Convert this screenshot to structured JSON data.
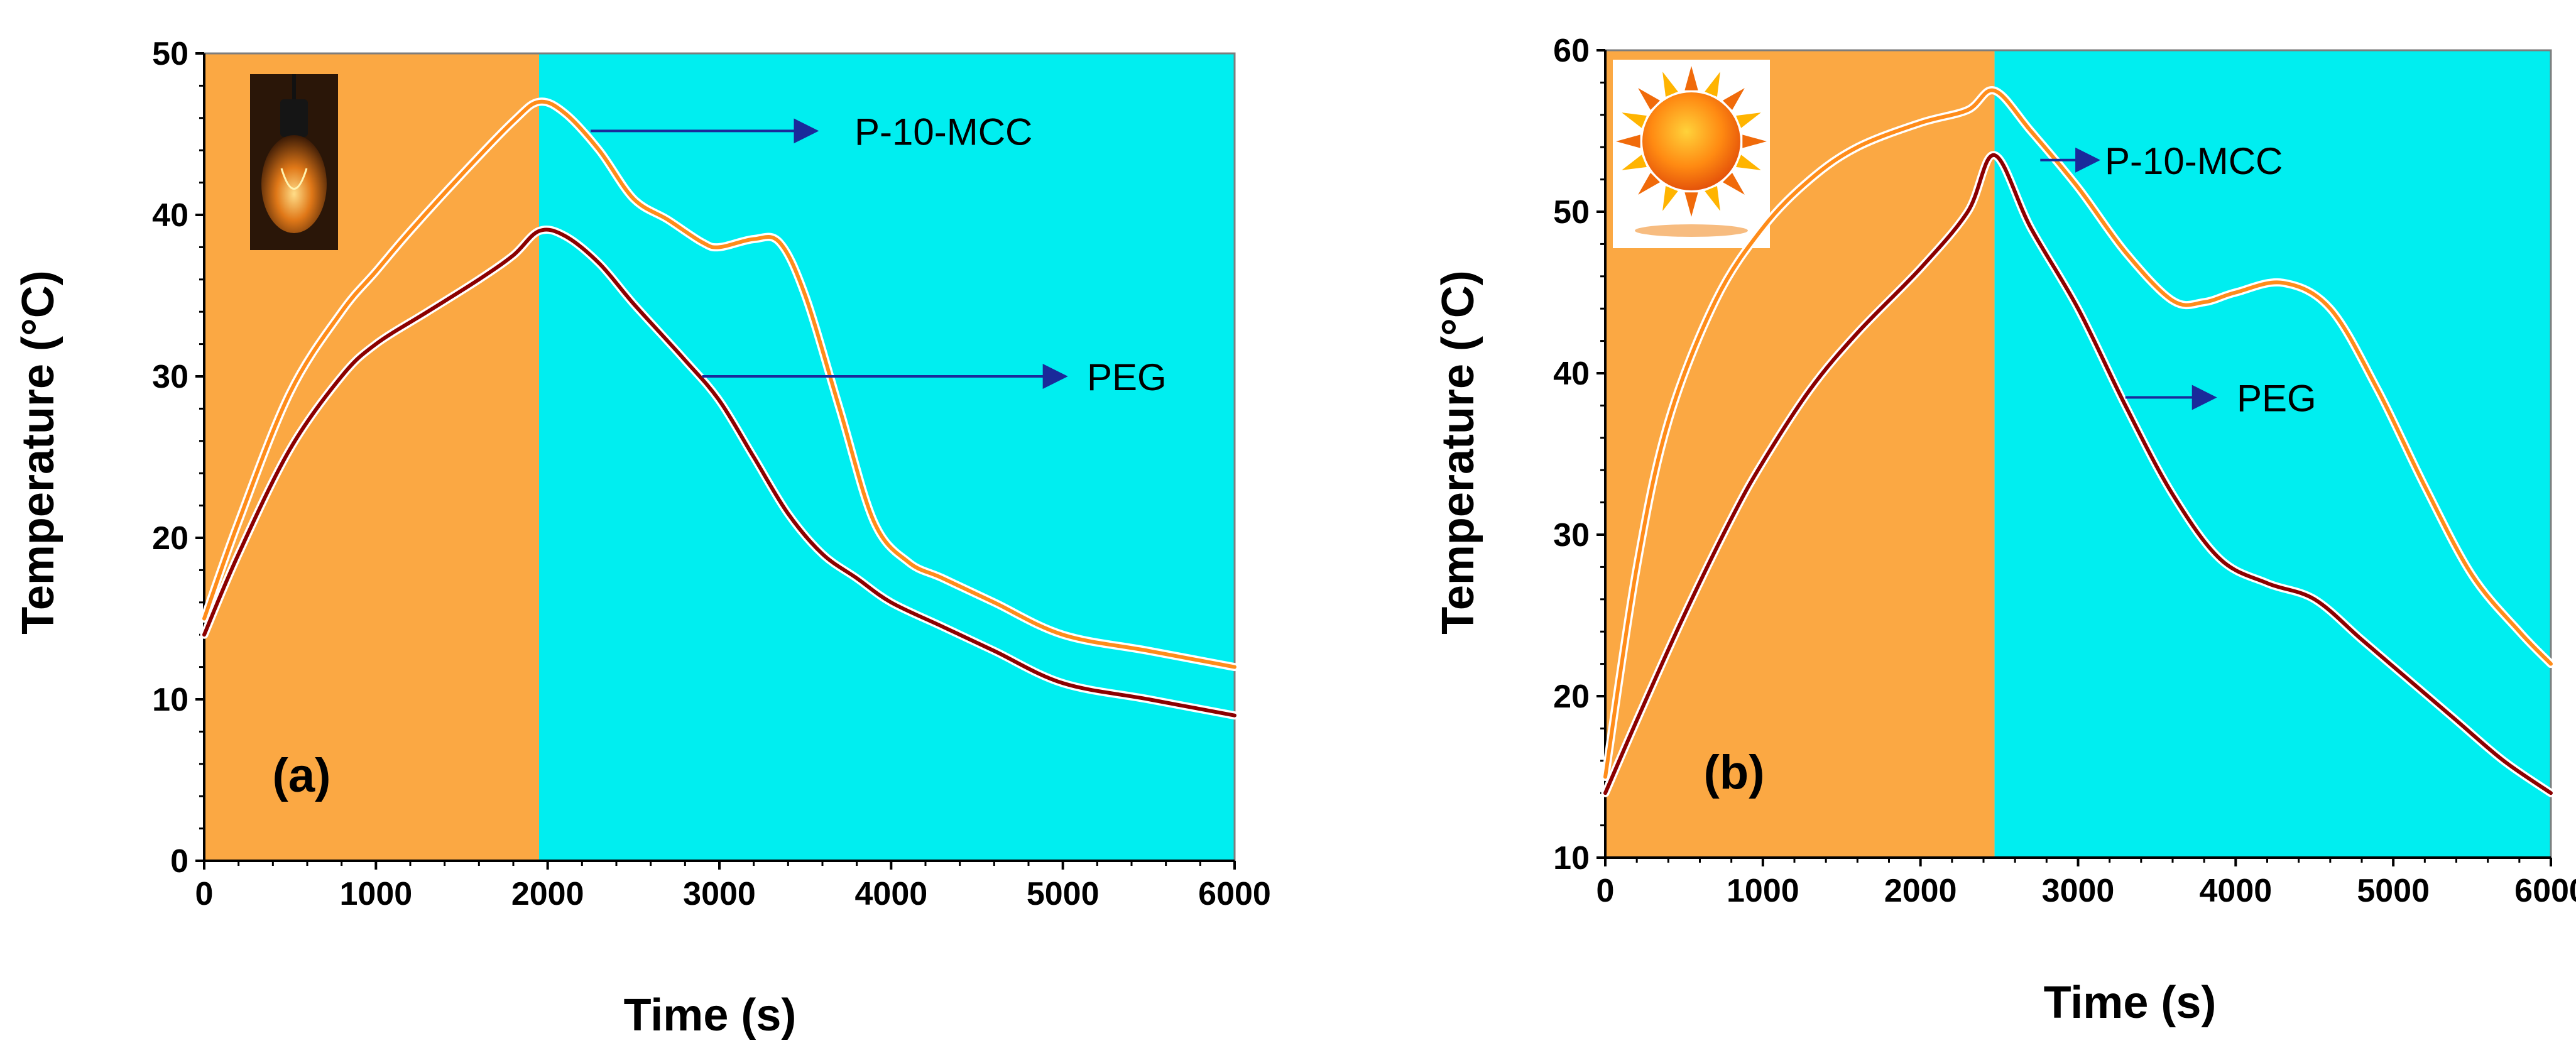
{
  "chart_data": [
    {
      "type": "line",
      "panel_label": "(a)",
      "icon": "light-bulb-icon",
      "xlabel": "Time (s)",
      "ylabel": "Temperature (°C)",
      "xlim": [
        0,
        6000
      ],
      "ylim": [
        0,
        50
      ],
      "xticks": [
        0,
        1000,
        2000,
        3000,
        4000,
        5000,
        6000
      ],
      "yticks": [
        0,
        10,
        20,
        30,
        40,
        50
      ],
      "phases": [
        {
          "name": "heating",
          "range": [
            0,
            1950
          ],
          "color": "#FBA843"
        },
        {
          "name": "cooling",
          "range": [
            1950,
            6000
          ],
          "color": "#00EEF0"
        }
      ],
      "series": [
        {
          "name": "P-10-MCC",
          "color": "#FF8C1A",
          "x": [
            0,
            200,
            500,
            800,
            1000,
            1200,
            1500,
            1800,
            1950,
            2100,
            2300,
            2500,
            2700,
            2900,
            3000,
            3200,
            3350,
            3500,
            3700,
            3900,
            4100,
            4300,
            4600,
            5000,
            5500,
            6000
          ],
          "y": [
            15,
            21,
            29,
            34,
            36.5,
            39,
            42.5,
            45.8,
            47,
            46.3,
            44,
            41,
            39.7,
            38.3,
            38,
            38.5,
            38.3,
            35,
            28,
            21,
            18.5,
            17.5,
            16,
            14,
            13,
            12
          ]
        },
        {
          "name": "PEG",
          "color": "#8B0000",
          "x": [
            0,
            200,
            500,
            800,
            1000,
            1300,
            1600,
            1800,
            1950,
            2100,
            2300,
            2500,
            2800,
            3000,
            3200,
            3400,
            3600,
            3800,
            4000,
            4300,
            4600,
            5000,
            5500,
            6000
          ],
          "y": [
            14,
            19,
            25.5,
            30,
            32,
            34,
            36,
            37.5,
            39,
            38.7,
            37,
            34.5,
            31,
            28.5,
            25,
            21.5,
            19,
            17.5,
            16,
            14.5,
            13,
            11,
            10,
            9
          ]
        }
      ],
      "annotations": [
        {
          "text": "P-10-MCC",
          "arrow_from": [
            2250,
            45.2
          ],
          "arrow_to": [
            3550,
            45.2
          ]
        },
        {
          "text": "PEG",
          "arrow_from": [
            2900,
            30
          ],
          "arrow_to": [
            5000,
            30
          ]
        }
      ]
    },
    {
      "type": "line",
      "panel_label": "(b)",
      "icon": "sun-icon",
      "xlabel": "Time (s)",
      "ylabel": "Temperature (°C)",
      "xlim": [
        0,
        6000
      ],
      "ylim": [
        10,
        60
      ],
      "xticks": [
        0,
        1000,
        2000,
        3000,
        4000,
        5000,
        6000
      ],
      "yticks": [
        10,
        20,
        30,
        40,
        50,
        60
      ],
      "phases": [
        {
          "name": "heating",
          "range": [
            0,
            2470
          ],
          "color": "#FBA843"
        },
        {
          "name": "cooling",
          "range": [
            2470,
            6000
          ],
          "color": "#00EEF0"
        }
      ],
      "series": [
        {
          "name": "P-10-MCC",
          "color": "#FF8C1A",
          "x": [
            0,
            200,
            400,
            700,
            1000,
            1300,
            1600,
            2000,
            2300,
            2470,
            2700,
            3000,
            3300,
            3600,
            3800,
            4000,
            4300,
            4600,
            4900,
            5200,
            5500,
            5800,
            6000
          ],
          "y": [
            15,
            28,
            37,
            44.5,
            49,
            52,
            54,
            55.5,
            56.3,
            57.5,
            55,
            51.5,
            47.5,
            44.5,
            44.4,
            45,
            45.6,
            44,
            39,
            33,
            27.5,
            24,
            22
          ]
        },
        {
          "name": "PEG",
          "color": "#8B0000",
          "x": [
            0,
            200,
            500,
            800,
            1000,
            1300,
            1600,
            2000,
            2300,
            2470,
            2700,
            3000,
            3300,
            3600,
            3900,
            4200,
            4500,
            4800,
            5100,
            5400,
            5700,
            6000
          ],
          "y": [
            14,
            18.5,
            25,
            31,
            34.5,
            39,
            42.5,
            46.5,
            50,
            53.5,
            49,
            44,
            38,
            32.5,
            28.5,
            27,
            26,
            23.5,
            21,
            18.5,
            16,
            14
          ]
        }
      ],
      "annotations": [
        {
          "text": "P-10-MCC",
          "arrow_from": [
            2760,
            53.2
          ],
          "arrow_to": [
            3110,
            53.2
          ]
        },
        {
          "text": "PEG",
          "arrow_from": [
            3300,
            38.5
          ],
          "arrow_to": [
            3850,
            38.5
          ]
        }
      ]
    }
  ]
}
